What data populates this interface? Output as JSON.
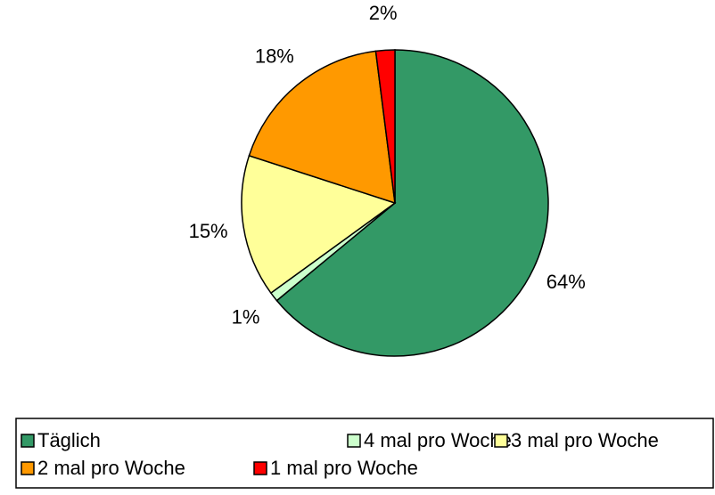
{
  "chart_data": {
    "type": "pie",
    "categories": [
      "Täglich",
      "4 mal pro Woche",
      "3 mal pro Woche",
      "2 mal pro Woche",
      "1 mal pro Woche"
    ],
    "values": [
      64,
      1,
      15,
      18,
      2
    ],
    "value_labels": [
      "64%",
      "1%",
      "15%",
      "18%",
      "2%"
    ],
    "colors": [
      "#339966",
      "#ccffcc",
      "#ffff99",
      "#ff9900",
      "#ff0000"
    ],
    "legend": "bottom"
  }
}
